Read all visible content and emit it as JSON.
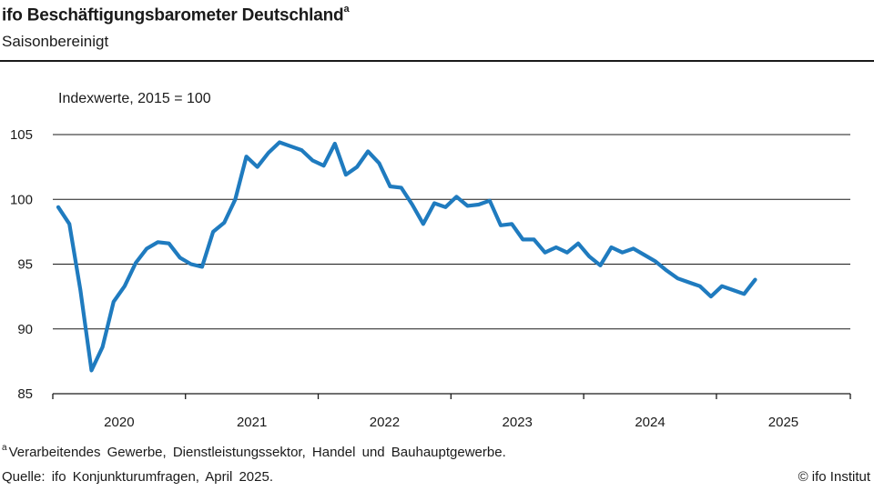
{
  "header": {
    "title": "ifo Beschäftigungsbarometer Deutschland",
    "title_note": "a",
    "subtitle": "Saisonbereinigt"
  },
  "footer": {
    "footnote_marker": "a",
    "footnote": "Verarbeitendes Gewerbe, Dienstleistungssektor, Handel und Bauhauptgewerbe.",
    "source": "Quelle: ifo Konjunkturumfragen, April 2025.",
    "copyright": "© ifo Institut"
  },
  "chart_data": {
    "type": "line",
    "title": "ifo Beschäftigungsbarometer Deutschland",
    "ylabel": "Indexwerte, 2015 = 100",
    "xlabel": "",
    "ylim": [
      85,
      105
    ],
    "yticks": [
      85,
      90,
      95,
      100,
      105
    ],
    "grid": true,
    "line_color": "#1f7bbf",
    "x_categories": [
      "2020",
      "2021",
      "2022",
      "2023",
      "2024",
      "2025"
    ],
    "x": [
      "2020-01",
      "2020-02",
      "2020-03",
      "2020-04",
      "2020-05",
      "2020-06",
      "2020-07",
      "2020-08",
      "2020-09",
      "2020-10",
      "2020-11",
      "2020-12",
      "2021-01",
      "2021-02",
      "2021-03",
      "2021-04",
      "2021-05",
      "2021-06",
      "2021-07",
      "2021-08",
      "2021-09",
      "2021-10",
      "2021-11",
      "2021-12",
      "2022-01",
      "2022-02",
      "2022-03",
      "2022-04",
      "2022-05",
      "2022-06",
      "2022-07",
      "2022-08",
      "2022-09",
      "2022-10",
      "2022-11",
      "2022-12",
      "2023-01",
      "2023-02",
      "2023-03",
      "2023-04",
      "2023-05",
      "2023-06",
      "2023-07",
      "2023-08",
      "2023-09",
      "2023-10",
      "2023-11",
      "2023-12",
      "2024-01",
      "2024-02",
      "2024-03",
      "2024-04",
      "2024-05",
      "2024-06",
      "2024-07",
      "2024-08",
      "2024-09",
      "2024-10",
      "2024-11",
      "2024-12",
      "2025-01",
      "2025-02",
      "2025-03",
      "2025-04"
    ],
    "series": [
      {
        "values": [
          99.4,
          98.1,
          93.0,
          86.8,
          88.6,
          92.1,
          93.3,
          95.1,
          96.2,
          96.7,
          96.6,
          95.5,
          95.0,
          94.8,
          97.5,
          98.2,
          100.0,
          103.3,
          102.5,
          103.6,
          104.4,
          104.1,
          103.8,
          103.0,
          102.6,
          104.3,
          101.9,
          102.5,
          103.7,
          102.8,
          101.0,
          100.9,
          99.6,
          98.1,
          99.7,
          99.4,
          100.2,
          99.5,
          99.6,
          99.9,
          98.0,
          98.1,
          96.9,
          96.9,
          95.9,
          96.3,
          95.9,
          96.6,
          95.6,
          94.9,
          96.3,
          95.9,
          96.2,
          95.7,
          95.2,
          94.5,
          93.9,
          93.6,
          93.3,
          92.5,
          93.3,
          93.0,
          92.7,
          93.8
        ]
      }
    ]
  }
}
